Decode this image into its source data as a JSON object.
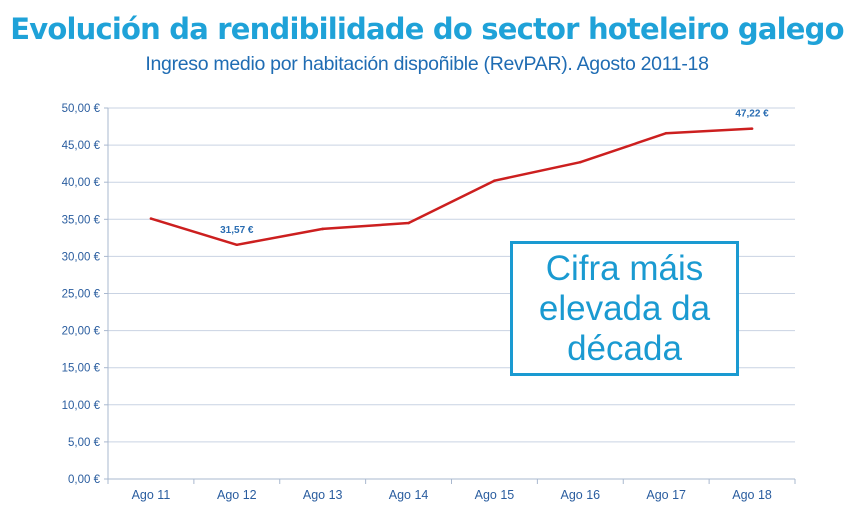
{
  "chart_data": {
    "type": "line",
    "title": "Evolución da rendibilidade do sector hoteleiro galego",
    "subtitle": "Ingreso medio por habitación dispoñible (RevPAR). Agosto 2011-18",
    "categories": [
      "Ago 11",
      "Ago 12",
      "Ago 13",
      "Ago 14",
      "Ago 15",
      "Ago 16",
      "Ago 17",
      "Ago 18"
    ],
    "series": [
      {
        "values": [
          35.1,
          31.57,
          33.7,
          34.5,
          40.2,
          42.7,
          46.6,
          47.22
        ]
      }
    ],
    "data_labels": [
      {
        "index": 1,
        "text": "31,57 €"
      },
      {
        "index": 7,
        "text": "47,22 €"
      }
    ],
    "y_ticks": [
      "0,00 €",
      "5,00 €",
      "10,00 €",
      "15,00 €",
      "20,00 €",
      "25,00 €",
      "30,00 €",
      "35,00 €",
      "40,00 €",
      "45,00 €",
      "50,00 €"
    ],
    "ylim": [
      0,
      50
    ],
    "ystep": 5,
    "grid": true,
    "line_color": "#cc1f1f",
    "annotation": "Cifra máis elevada da década"
  },
  "colors": {
    "title": "#1fa2d8",
    "subtitle": "#1f6cb3",
    "axis_text": "#2a5d9f",
    "data_label": "#2a6db2",
    "grid": "#c9d3e3",
    "callout": "#1a9ad1"
  }
}
